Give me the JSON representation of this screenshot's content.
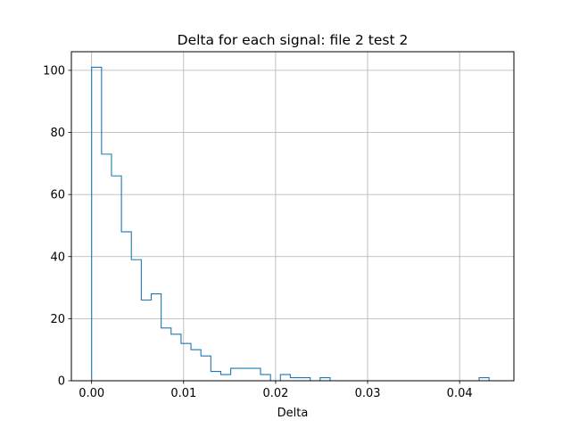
{
  "chart_data": {
    "type": "histogram",
    "title": "Delta for each signal: file 2 test 2",
    "xlabel": "Delta",
    "ylabel": "",
    "xlim": [
      -0.0022,
      0.0459
    ],
    "ylim": [
      0,
      106
    ],
    "grid": true,
    "x_ticks": [
      0.0,
      0.01,
      0.02,
      0.03,
      0.04
    ],
    "x_tick_labels": [
      "0.00",
      "0.01",
      "0.02",
      "0.03",
      "0.04"
    ],
    "y_ticks": [
      0,
      20,
      40,
      60,
      80,
      100
    ],
    "y_tick_labels": [
      "0",
      "20",
      "40",
      "60",
      "80",
      "100"
    ],
    "bin_start": 0.0,
    "bin_width": 0.00108,
    "counts": [
      101,
      73,
      66,
      48,
      39,
      26,
      28,
      17,
      15,
      12,
      10,
      8,
      3,
      2,
      4,
      4,
      4,
      2,
      0,
      2,
      1,
      1,
      0,
      1,
      0,
      0,
      0,
      0,
      0,
      0,
      0,
      0,
      0,
      0,
      0,
      0,
      0,
      0,
      0,
      1
    ],
    "color": "#1f77b4"
  }
}
